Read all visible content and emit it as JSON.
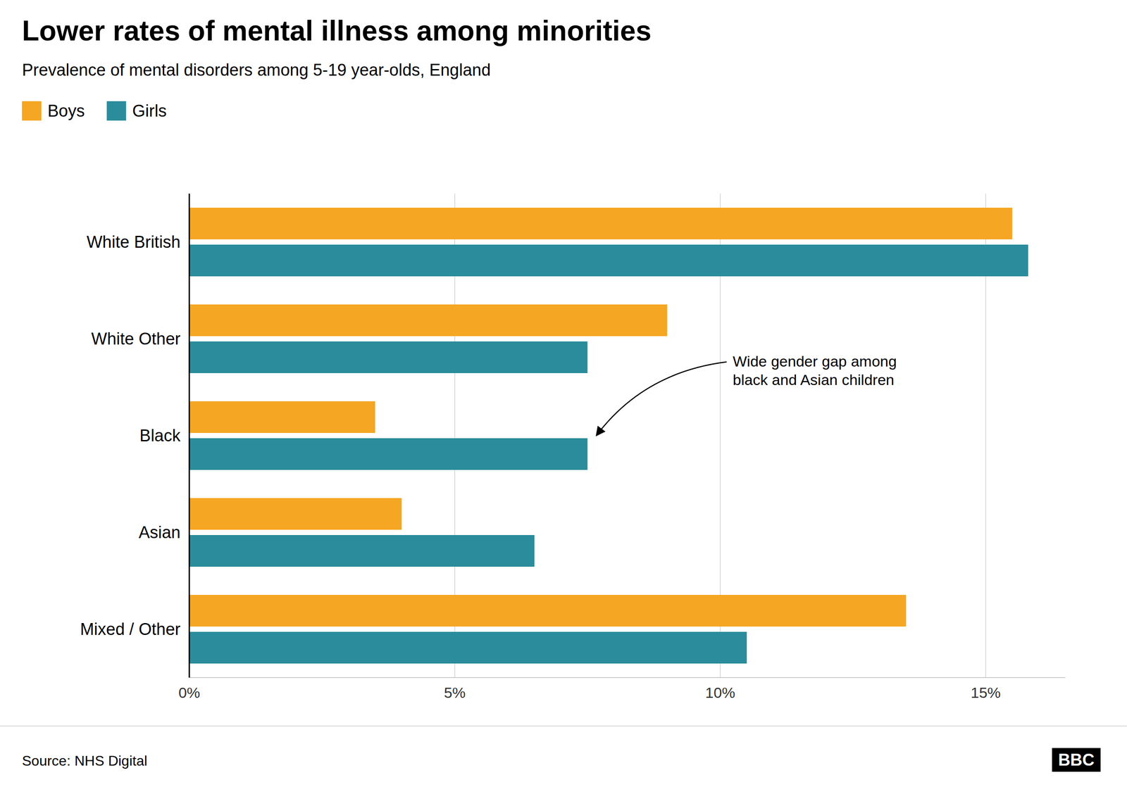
{
  "chart_data": {
    "type": "bar",
    "orientation": "horizontal",
    "title": "Lower rates of mental illness among minorities",
    "subtitle": "Prevalence of mental disorders among 5-19 year-olds, England",
    "categories": [
      "White British",
      "White Other",
      "Black",
      "Asian",
      "Mixed / Other"
    ],
    "series": [
      {
        "name": "Boys",
        "color": "#F5A623",
        "values": [
          15.5,
          9.0,
          3.5,
          4.0,
          13.5
        ]
      },
      {
        "name": "Girls",
        "color": "#2B8C9B",
        "values": [
          15.8,
          7.5,
          7.5,
          6.5,
          10.5
        ]
      }
    ],
    "xlim": [
      0,
      16.5
    ],
    "xticks": [
      {
        "value": 0,
        "label": "0%"
      },
      {
        "value": 5,
        "label": "5%"
      },
      {
        "value": 10,
        "label": "10%"
      },
      {
        "value": 15,
        "label": "15%"
      }
    ],
    "grid": true,
    "legend": "upper left",
    "annotation": {
      "text": "Wide gender gap among\nblack and Asian children",
      "category": "Black"
    },
    "source": "Source: NHS Digital",
    "credit": "BBC"
  }
}
